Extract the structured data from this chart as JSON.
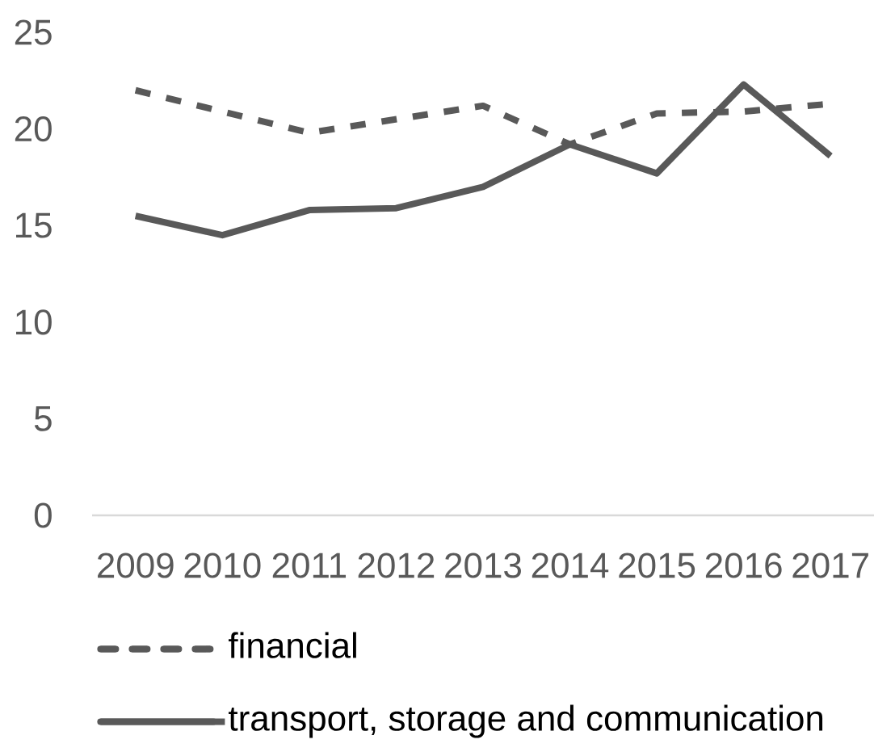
{
  "chart_data": {
    "type": "line",
    "categories": [
      "2009",
      "2010",
      "2011",
      "2012",
      "2013",
      "2014",
      "2015",
      "2016",
      "2017"
    ],
    "series": [
      {
        "name": "financial",
        "color": "#595959",
        "line_style": "dashed",
        "values": [
          22.0,
          20.9,
          19.8,
          20.5,
          21.2,
          19.2,
          20.8,
          20.9,
          21.3
        ]
      },
      {
        "name": "transport, storage and communication",
        "color": "#595959",
        "line_style": "solid",
        "values": [
          15.5,
          14.5,
          15.8,
          15.9,
          17.0,
          19.2,
          17.7,
          22.3,
          18.6
        ]
      }
    ],
    "ylim": [
      0,
      25
    ],
    "yticks": [
      0,
      5,
      10,
      15,
      20,
      25
    ],
    "legend": "bottom"
  }
}
